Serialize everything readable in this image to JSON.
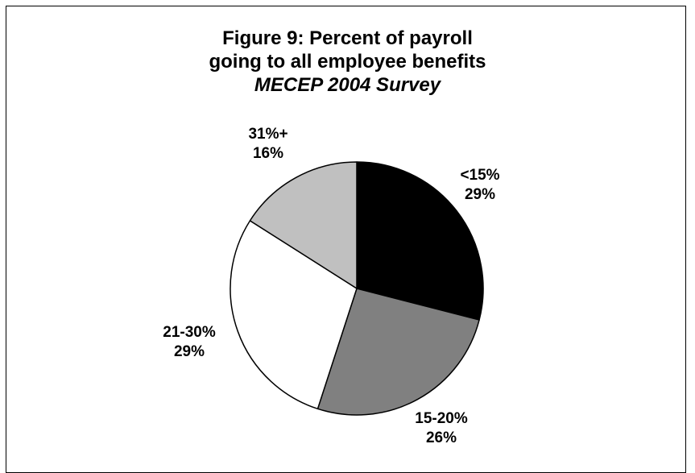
{
  "chart_data": {
    "type": "pie",
    "title_lines": [
      "Figure 9: Percent of payroll",
      "going to all employee benefits"
    ],
    "subtitle": "MECEP 2004 Survey",
    "slices": [
      {
        "category": "<15%",
        "value_label": "29%",
        "value": 29,
        "color": "#000000"
      },
      {
        "category": "15-20%",
        "value_label": "26%",
        "value": 26,
        "color": "#808080"
      },
      {
        "category": "21-30%",
        "value_label": "29%",
        "value": 29,
        "color": "#ffffff"
      },
      {
        "category": "31%+",
        "value_label": "16%",
        "value": 16,
        "color": "#c0c0c0"
      }
    ],
    "start_angle_deg": 0,
    "direction": "clockwise",
    "legend": "none",
    "slice_border_color": "#000000"
  }
}
